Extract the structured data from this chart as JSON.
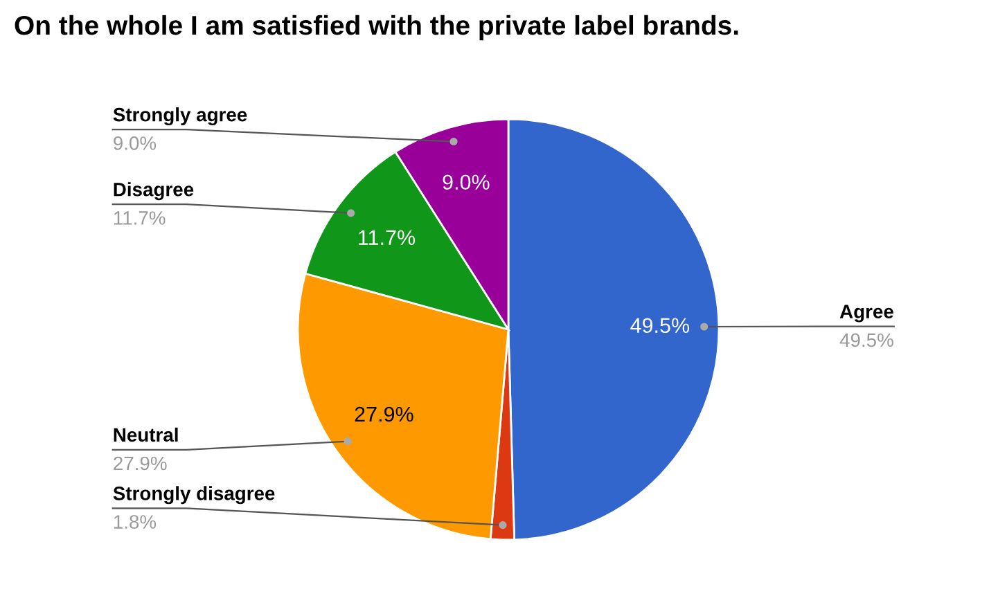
{
  "chart_data": {
    "type": "pie",
    "title": "On the whole I am satisfied with the private label brands.",
    "categories": [
      "Agree",
      "Strongly disagree",
      "Neutral",
      "Disagree",
      "Strongly agree"
    ],
    "values": [
      49.5,
      1.8,
      27.9,
      11.7,
      9.0
    ],
    "colors": [
      "#3366cc",
      "#dc3912",
      "#ff9900",
      "#109618",
      "#990099"
    ],
    "value_labels": [
      "49.5%",
      "1.8%",
      "27.9%",
      "11.7%",
      "9.0%"
    ]
  }
}
